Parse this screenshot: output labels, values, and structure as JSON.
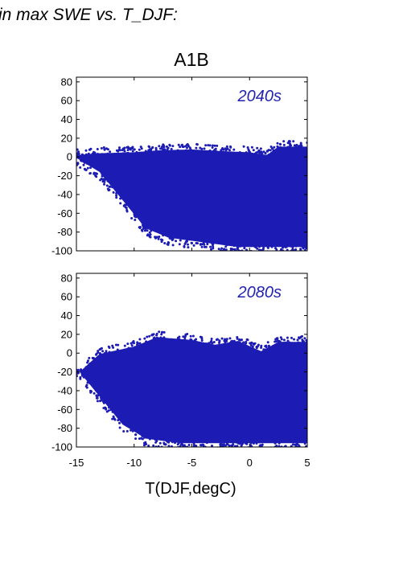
{
  "figure": {
    "title": "in max SWE vs. T_DJF:",
    "scenario": "A1B",
    "xlabel": "T(DJF,degC)",
    "point_color": "#1c1cb4",
    "panel_label_color": "#2323b0"
  },
  "chart_data": [
    {
      "type": "scatter",
      "panel_label": "2040s",
      "xlabel": "",
      "ylabel": "",
      "xlim": [
        -15,
        5
      ],
      "ylim": [
        -100,
        85
      ],
      "x_ticks": [
        -15,
        -10,
        -5,
        0,
        5
      ],
      "y_ticks": [
        -100,
        -80,
        -60,
        -40,
        -20,
        0,
        20,
        40,
        60,
        80
      ],
      "grid": false,
      "point_cloud": {
        "x_range": [
          -15,
          5
        ],
        "upper_envelope": [
          [
            -15,
            5
          ],
          [
            -13,
            7
          ],
          [
            -10,
            8
          ],
          [
            -8,
            10
          ],
          [
            -5,
            11
          ],
          [
            -2,
            9
          ],
          [
            0,
            8
          ],
          [
            1.5,
            5
          ],
          [
            2.5,
            14
          ]
        ],
        "lower_envelope": [
          [
            -15,
            -5
          ],
          [
            -13,
            -20
          ],
          [
            -11,
            -50
          ],
          [
            -9,
            -80
          ],
          [
            -7,
            -90
          ],
          [
            -4,
            -95
          ],
          [
            -1,
            -100
          ],
          [
            3,
            -100
          ],
          [
            5,
            -100
          ]
        ],
        "density_center": [
          -7,
          -35
        ]
      }
    },
    {
      "type": "scatter",
      "panel_label": "2080s",
      "xlabel": "T(DJF,degC)",
      "ylabel": "",
      "xlim": [
        -15,
        5
      ],
      "ylim": [
        -100,
        85
      ],
      "x_ticks": [
        -15,
        -10,
        -5,
        0,
        5
      ],
      "y_ticks": [
        -100,
        -80,
        -60,
        -40,
        -20,
        0,
        20,
        40,
        60,
        80
      ],
      "grid": false,
      "point_cloud": {
        "x_range": [
          -15,
          5
        ],
        "upper_envelope": [
          [
            -15,
            -20
          ],
          [
            -13,
            2
          ],
          [
            -10,
            10
          ],
          [
            -8,
            20
          ],
          [
            -5,
            17
          ],
          [
            -3,
            12
          ],
          [
            -1,
            16
          ],
          [
            1,
            5
          ],
          [
            2.5,
            15
          ]
        ],
        "lower_envelope": [
          [
            -15,
            -20
          ],
          [
            -13,
            -50
          ],
          [
            -11,
            -80
          ],
          [
            -9,
            -95
          ],
          [
            -6,
            -100
          ],
          [
            -2,
            -100
          ],
          [
            2,
            -100
          ],
          [
            5,
            -100
          ]
        ],
        "density_center": [
          -7,
          -45
        ]
      }
    }
  ]
}
